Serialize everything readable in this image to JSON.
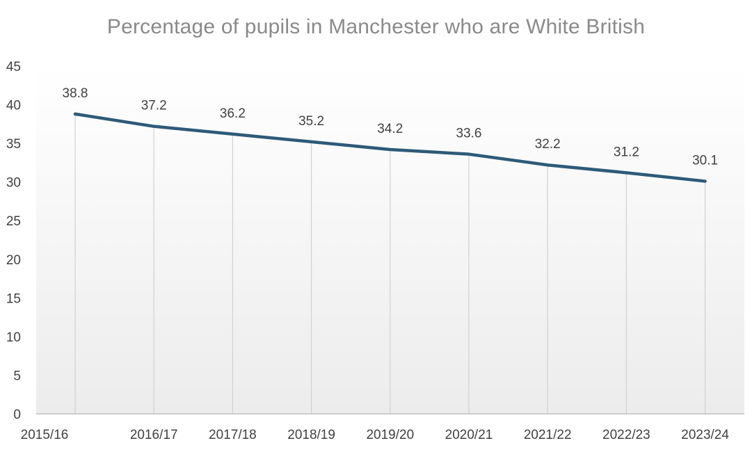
{
  "chart_data": {
    "type": "line",
    "title": "Percentage of pupils in Manchester who are White British",
    "xlabel": "",
    "ylabel": "",
    "categories": [
      "2015/16",
      "2016/17",
      "2017/18",
      "2018/19",
      "2019/20",
      "2020/21",
      "2021/22",
      "2022/23",
      "2023/24"
    ],
    "series": [
      {
        "name": "White British (%)",
        "values": [
          38.8,
          37.2,
          36.2,
          35.2,
          34.2,
          33.6,
          32.2,
          31.2,
          30.1
        ],
        "labels": [
          "38.8",
          "37.2",
          "36.2",
          "35.2",
          "34.2",
          "33.6",
          "32.2",
          "31.2",
          "30.1"
        ]
      }
    ],
    "ylim": [
      0,
      45
    ],
    "yticks": [
      0,
      5,
      10,
      15,
      20,
      25,
      30,
      35,
      40,
      45
    ],
    "ytick_labels": [
      "0",
      "5",
      "10",
      "15",
      "20",
      "25",
      "30",
      "35",
      "40",
      "45"
    ],
    "grid": "vertical drop lines",
    "line_color": "#2e5a78",
    "axis_color": "#bfbfbf",
    "legend": "none"
  }
}
